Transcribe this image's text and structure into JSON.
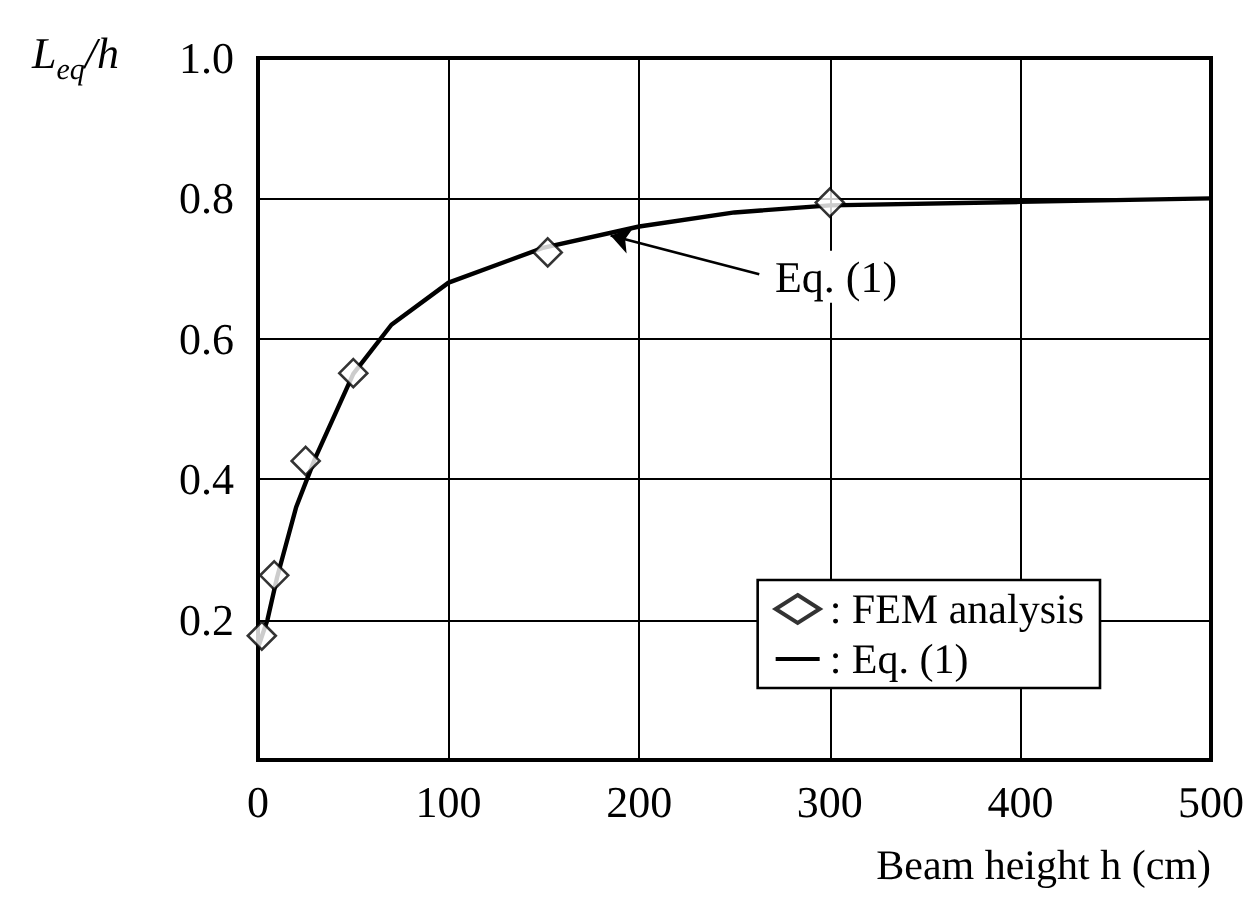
{
  "chart_data": {
    "type": "line",
    "xlabel": "Beam height h (cm)",
    "ylabel": "L$_{eq}$/h",
    "xlim": [
      0,
      500
    ],
    "xticks": [
      0,
      100,
      200,
      300,
      400,
      500
    ],
    "ylim": [
      0,
      1.0
    ],
    "yticks": [
      {
        "value": 0,
        "label": null
      },
      0.2,
      0.4,
      0.6,
      0.8,
      "1.0"
    ],
    "grid": true,
    "legend": "bottom right",
    "series": [
      {
        "name": ": FEM analysis",
        "type": "scatter",
        "marker": "diamond",
        "color": "#000000",
        "x": [
          2,
          8.5,
          25,
          50,
          152,
          300
        ],
        "values": [
          0.177,
          0.263,
          0.426,
          0.551,
          0.723,
          0.794
        ]
      },
      {
        "name": ": Eq. (1)",
        "type": "line",
        "marker": "none",
        "line_style": "solid",
        "color": "#000000",
        "x": [
          0,
          5,
          10,
          20,
          30,
          50,
          70,
          100,
          150,
          200,
          250,
          300,
          400,
          500
        ],
        "values": [
          0.16,
          0.2,
          0.26,
          0.36,
          0.43,
          0.55,
          0.62,
          0.68,
          0.73,
          0.76,
          0.78,
          0.79,
          0.795,
          0.8
        ]
      }
    ],
    "annotations": [
      {
        "text": "Eq. (1)",
        "x": 185,
        "y": 0.752
      }
    ]
  }
}
